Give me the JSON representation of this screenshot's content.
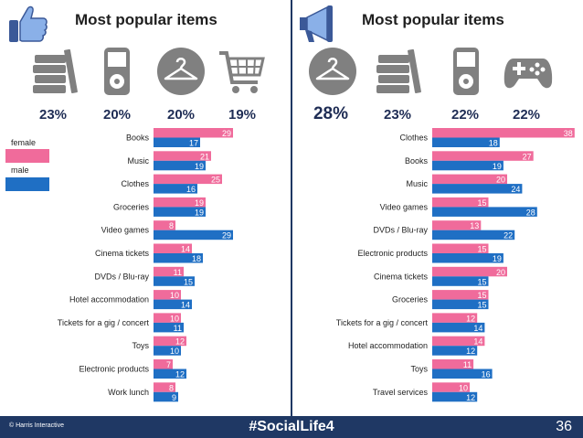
{
  "colors": {
    "female": "#f06b9b",
    "male": "#1f6fc4",
    "label": "#1f1f1f",
    "footer": "#1f3864"
  },
  "left": {
    "title": "Most popular items",
    "icons": [
      "thumbs-up-icon",
      "books-icon",
      "music-player-icon",
      "hanger-icon",
      "shopping-cart-icon"
    ],
    "percentages": [
      "23%",
      "20%",
      "20%",
      "19%"
    ]
  },
  "right": {
    "title": "Most popular items",
    "icons": [
      "megaphone-icon",
      "hanger-icon",
      "books-icon",
      "music-player-icon",
      "gamepad-icon"
    ],
    "percentages": [
      "28%",
      "23%",
      "22%",
      "22%"
    ]
  },
  "legend": {
    "female": "female",
    "male": "male"
  },
  "chart_data": [
    {
      "type": "bar",
      "orientation": "horizontal",
      "categories": [
        "Books",
        "Music",
        "Clothes",
        "Groceries",
        "Video games",
        "Cinema tickets",
        "DVDs / Blu-ray",
        "Hotel accommodation",
        "Tickets for a gig / concert",
        "Toys",
        "Electronic products",
        "Work lunch"
      ],
      "series": [
        {
          "name": "female",
          "values": [
            29,
            21,
            25,
            19,
            8,
            14,
            11,
            10,
            10,
            12,
            7,
            8
          ]
        },
        {
          "name": "male",
          "values": [
            17,
            19,
            16,
            19,
            29,
            18,
            15,
            14,
            11,
            10,
            12,
            9
          ]
        }
      ]
    },
    {
      "type": "bar",
      "orientation": "horizontal",
      "categories": [
        "Clothes",
        "Books",
        "Music",
        "Video games",
        "DVDs / Blu-ray",
        "Electronic products",
        "Cinema tickets",
        "Groceries",
        "Tickets for a gig / concert",
        "Hotel accommodation",
        "Toys",
        "Travel services"
      ],
      "series": [
        {
          "name": "female",
          "values": [
            38,
            27,
            20,
            15,
            13,
            15,
            20,
            15,
            12,
            14,
            11,
            10
          ]
        },
        {
          "name": "male",
          "values": [
            18,
            19,
            24,
            28,
            22,
            19,
            15,
            15,
            14,
            12,
            16,
            12
          ]
        }
      ]
    }
  ],
  "footer": {
    "copyright": "© Harris Interactive",
    "hashtag": "#SocialLife4",
    "page": "36"
  }
}
